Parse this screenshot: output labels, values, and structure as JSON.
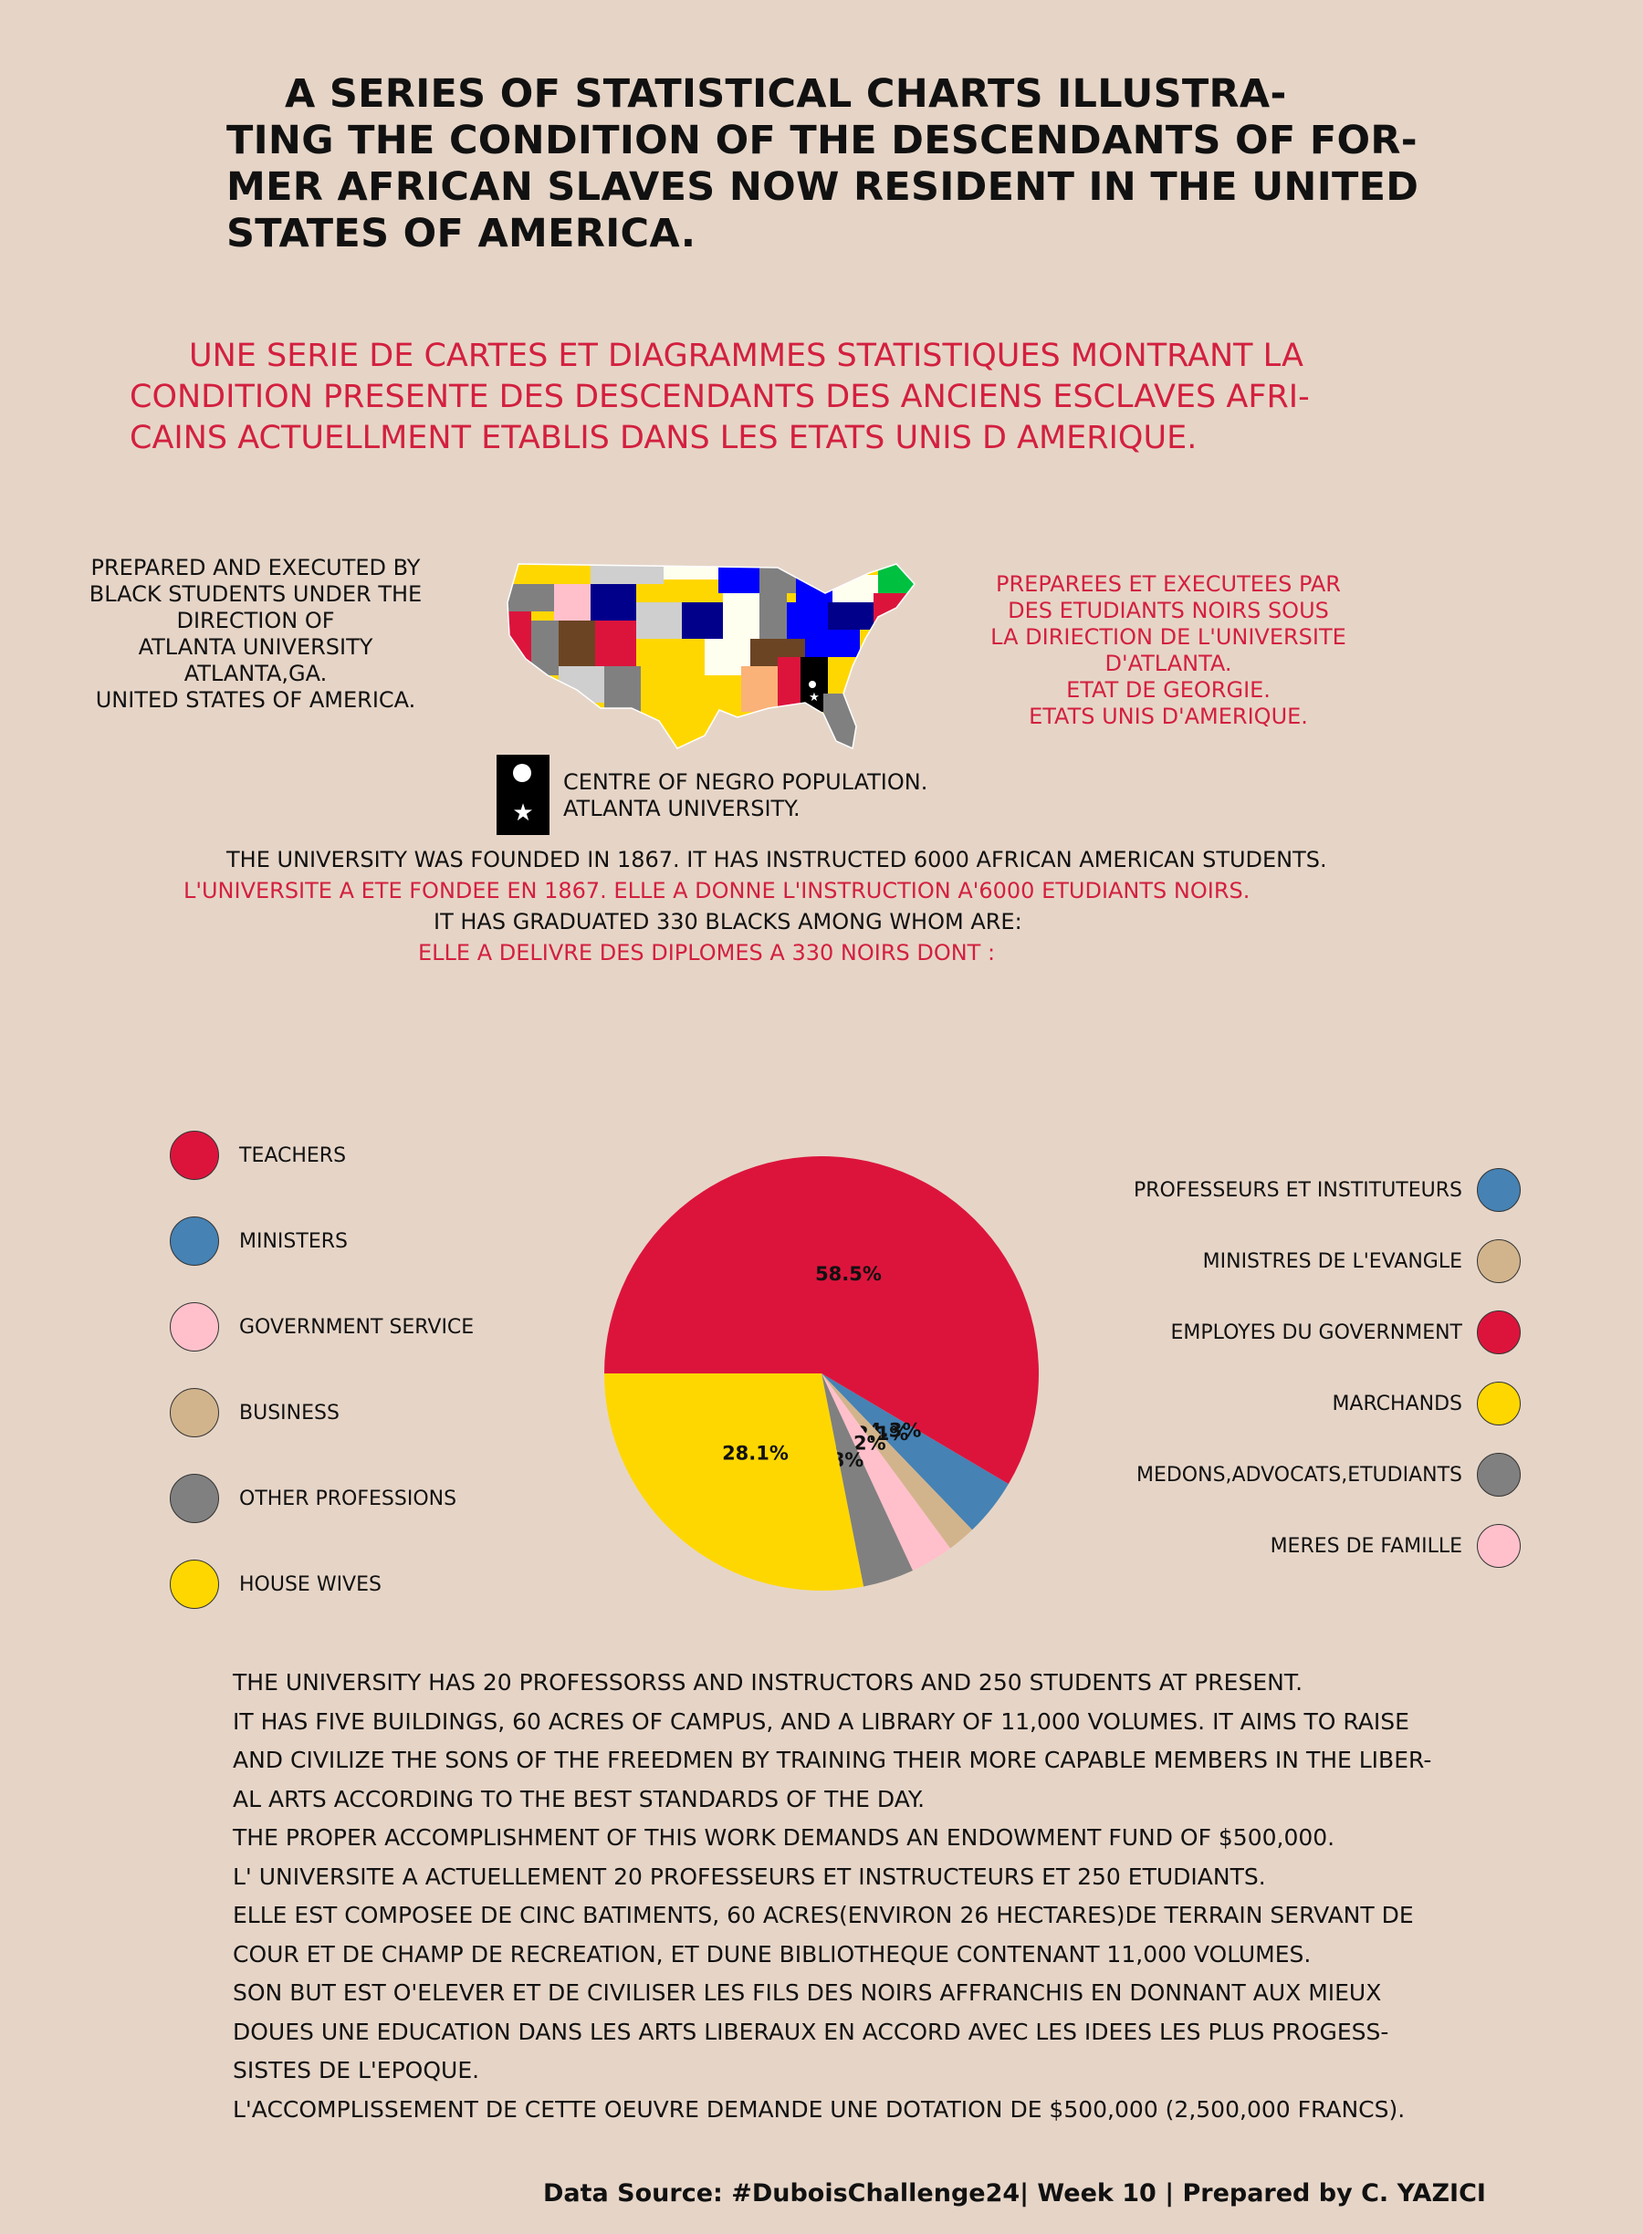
{
  "title_en": [
    "A SERIES OF STATISTICAL CHARTS ILLUSTRA-",
    "TING THE CONDITION OF THE DESCENDANTS OF FOR-",
    "MER AFRICAN SLAVES NOW RESIDENT IN THE UNITED",
    "STATES OF AMERICA."
  ],
  "title_fr": [
    "UNE SERIE DE CARTES ET DIAGRAMMES STATISTIQUES MONTRANT LA",
    "CONDITION PRESENTE DES DESCENDANTS DES ANCIENS ESCLAVES AFRI-",
    "CAINS ACTUELLMENT ETABLIS DANS LES ETATS UNIS D AMERIQUE."
  ],
  "prepared_en": [
    "PREPARED AND EXECUTED BY",
    "BLACK STUDENTS UNDER THE",
    "DIRECTION OF",
    "ATLANTA UNIVERSITY",
    "ATLANTA,GA.",
    "UNITED STATES OF AMERICA."
  ],
  "prepared_fr": [
    "PREPAREES ET EXECUTEES PAR",
    "DES ETUDIANTS NOIRS SOUS",
    "LA DIRIECTION DE L'UNIVERSITE",
    "D'ATLANTA.",
    "ETAT DE GEORGIE.",
    "ETATS UNIS D'AMERIQUE."
  ],
  "map_legend": {
    "centre": "CENTRE OF NEGRO POPULATION.",
    "university": "ATLANTA UNIVERSITY.",
    "star_symbol": "★"
  },
  "info": {
    "founded_en": "THE UNIVERSITY WAS FOUNDED IN 1867. IT HAS INSTRUCTED 6000 AFRICAN AMERICAN STUDENTS.",
    "founded_fr": "L'UNIVERSITE A ETE FONDEE EN 1867. ELLE A DONNE L'INSTRUCTION A'6000 ETUDIANTS NOIRS.",
    "graduated_en": "IT HAS GRADUATED 330 BLACKS AMONG WHOM ARE:",
    "graduated_fr": "ELLE A DELIVRE DES DIPLOMES A 330 NOIRS DONT :"
  },
  "colors": {
    "background": "#e6d5c7",
    "crimson": "#dc143c",
    "steelblue": "#4682b4",
    "pink": "#ffc0cb",
    "tan": "#d2b48c",
    "gray": "#808080",
    "gold": "#ffd700",
    "french_text": "#d3203f"
  },
  "legend_left": [
    {
      "label": "TEACHERS",
      "color": "#dc143c"
    },
    {
      "label": "MINISTERS",
      "color": "#4682b4"
    },
    {
      "label": "GOVERNMENT SERVICE",
      "color": "#ffc0cb"
    },
    {
      "label": "BUSINESS",
      "color": "#d2b48c"
    },
    {
      "label": "OTHER PROFESSIONS",
      "color": "#808080"
    },
    {
      "label": "HOUSE WIVES",
      "color": "#ffd700"
    }
  ],
  "legend_right": [
    {
      "label": "PROFESSEURS ET INSTITUTEURS",
      "color": "#4682b4"
    },
    {
      "label": "MINISTRES DE L'EVANGLE",
      "color": "#d2b48c"
    },
    {
      "label": "EMPLOYES DU GOVERNMENT",
      "color": "#dc143c"
    },
    {
      "label": "MARCHANDS",
      "color": "#ffd700"
    },
    {
      "label": "MEDONS,ADVOCATS,ETUDIANTS",
      "color": "#808080"
    },
    {
      "label": "MERES DE FAMILLE",
      "color": "#ffc0cb"
    }
  ],
  "chart_data": {
    "type": "pie",
    "slices": [
      {
        "label": "TEACHERS",
        "value": 58.5,
        "text": "58.5%",
        "color": "#dc143c"
      },
      {
        "label": "MINISTERS",
        "value": 4.3,
        "text": "4.3%",
        "color": "#4682b4"
      },
      {
        "label": "BUSINESS",
        "value": 2.1,
        "text": "2.1%",
        "color": "#d2b48c"
      },
      {
        "label": "GOVERNMENT SERVICE",
        "value": 3.2,
        "text": "3.2%",
        "color": "#ffc0cb"
      },
      {
        "label": "OTHER PROFESSIONS",
        "value": 3.8,
        "text": "3.8%",
        "color": "#808080"
      },
      {
        "label": "HOUSE WIVES",
        "value": 28.1,
        "text": "28.1%",
        "color": "#ffd700"
      }
    ],
    "start_angle_deg": 180,
    "direction": "clockwise"
  },
  "body_text": [
    "THE UNIVERSITY HAS 20 PROFESSORSS AND INSTRUCTORS AND 250 STUDENTS AT PRESENT.",
    "IT HAS FIVE BUILDINGS, 60 ACRES OF CAMPUS, AND A LIBRARY OF 11,000 VOLUMES. IT AIMS TO RAISE",
    "AND CIVILIZE THE SONS OF THE FREEDMEN BY TRAINING THEIR MORE CAPABLE MEMBERS IN THE LIBER-",
    "AL ARTS ACCORDING TO THE BEST STANDARDS OF THE DAY.",
    "THE PROPER ACCOMPLISHMENT OF THIS WORK DEMANDS AN ENDOWMENT FUND OF $500,000.",
    "L' UNIVERSITE A ACTUELLEMENT 20 PROFESSEURS ET INSTRUCTEURS ET 250 ETUDIANTS.",
    "ELLE EST COMPOSEE DE CINC BATIMENTS, 60 ACRES(ENVIRON 26 HECTARES)DE TERRAIN SERVANT DE",
    "COUR ET DE CHAMP DE RECREATION, ET DUNE BIBLIOTHEQUE CONTENANT 11,000 VOLUMES.",
    "SON BUT EST O'ELEVER ET DE CIVILISER LES FILS DES NOIRS AFFRANCHIS EN DONNANT AUX MIEUX",
    "DOUES UNE EDUCATION DANS LES ARTS LIBERAUX EN ACCORD AVEC LES IDEES LES PLUS PROGESS-",
    "SISTES DE L'EPOQUE.",
    "L'ACCOMPLISSEMENT DE CETTE OEUVRE DEMANDE UNE DOTATION DE $500,000 (2,500,000 FRANCS)."
  ],
  "footer": "Data Source: #DuboisChallenge24| Week 10 | Prepared by C. YAZICI"
}
